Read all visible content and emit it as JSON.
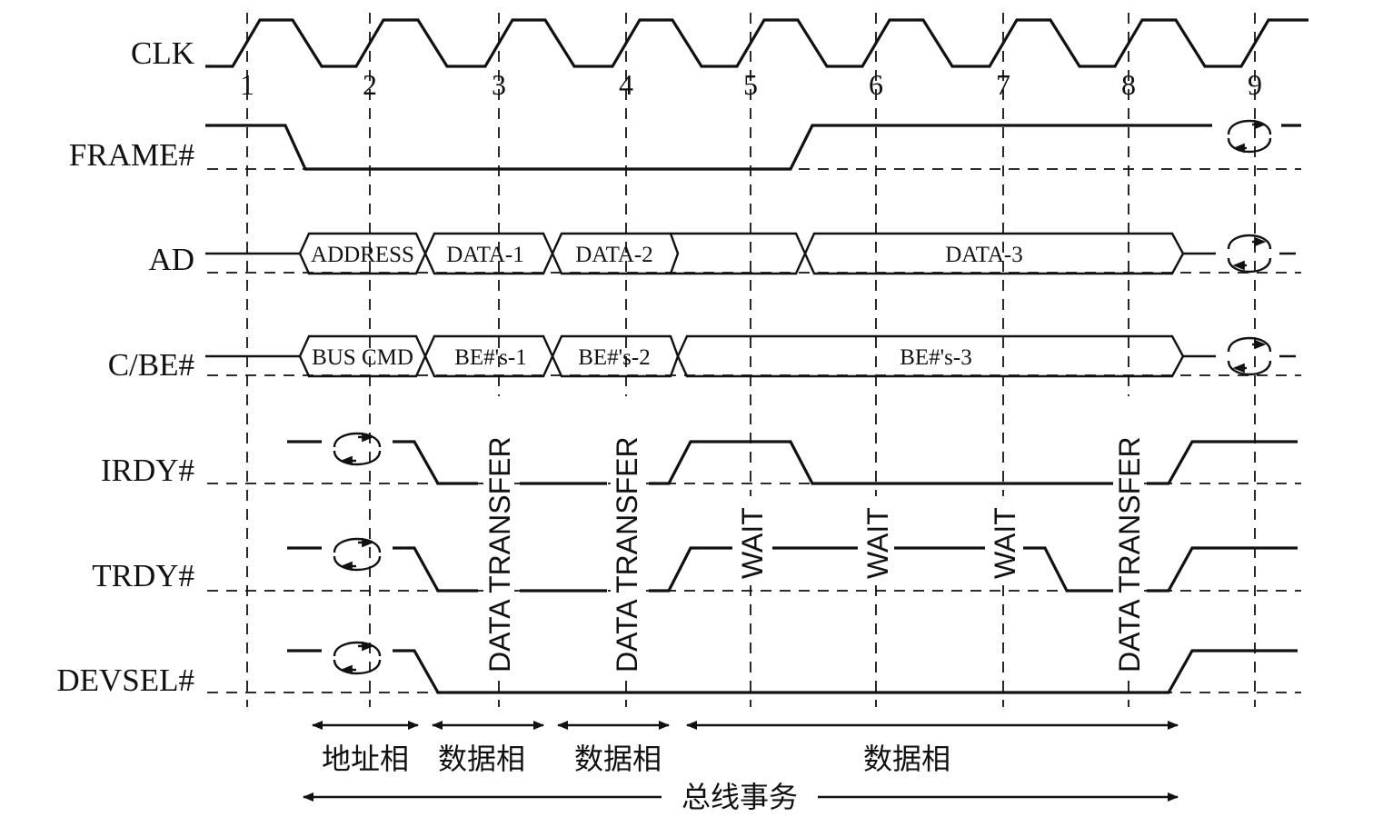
{
  "signals": {
    "clk": "CLK",
    "frame": "FRAME#",
    "ad": "AD",
    "cbe": "C/BE#",
    "irdy": "IRDY#",
    "trdy": "TRDY#",
    "devsel": "DEVSEL#"
  },
  "clock_numbers": [
    "1",
    "2",
    "3",
    "4",
    "5",
    "6",
    "7",
    "8",
    "9"
  ],
  "ad_bus": [
    "ADDRESS",
    "DATA-1",
    "DATA-2",
    "DATA-3"
  ],
  "cbe_bus": [
    "BUS CMD",
    "BE#'s-1",
    "BE#'s-2",
    "BE#'s-3"
  ],
  "annotations": {
    "data_transfer": "DATA TRANSFER",
    "wait": "WAIT"
  },
  "phases": {
    "address": "地址相",
    "data1": "数据相",
    "data2": "数据相",
    "data3": "数据相",
    "transaction": "总线事务"
  }
}
